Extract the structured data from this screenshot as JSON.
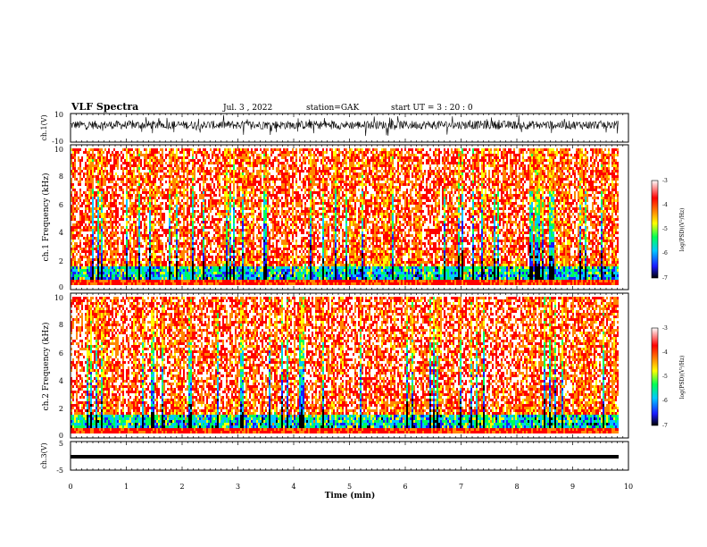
{
  "header": {
    "title": "VLF Spectra",
    "date": "Jul. 3 , 2022",
    "station": "station=GAK",
    "start": "start UT = 3 : 20 : 0"
  },
  "chart_data": [
    {
      "type": "line",
      "panel": "ch1-waveform",
      "ylabel": "ch.1(V)",
      "ylim": [
        -10,
        10
      ],
      "y_tick_labels": [
        "10",
        "-10"
      ],
      "xlim": [
        0,
        10
      ],
      "description": "noisy waveform centered near 2 V, roughly between -4 and 8 V"
    },
    {
      "type": "heatmap",
      "panel": "ch1-spectrogram",
      "ylabel": "ch.1 Frequency (kHz)",
      "ylim": [
        0,
        10
      ],
      "y_tick_labels": [
        "0",
        "2",
        "4",
        "6",
        "8",
        "10"
      ],
      "xlim": [
        0,
        9.85
      ],
      "colorbar": {
        "label": "log(PSD)(V²/Hz)",
        "range": [
          -7,
          -3
        ],
        "tick_labels": [
          "-3",
          "-4",
          "-5",
          "-6",
          "-7"
        ]
      }
    },
    {
      "type": "heatmap",
      "panel": "ch2-spectrogram",
      "ylabel": "ch.2 Frequency (kHz)",
      "ylim": [
        0,
        10
      ],
      "y_tick_labels": [
        "0",
        "2",
        "4",
        "6",
        "8",
        "10"
      ],
      "xlim": [
        0,
        9.85
      ],
      "colorbar": {
        "label": "log(PSD)(V²/Hz)",
        "range": [
          -7,
          -3
        ],
        "tick_labels": [
          "-3",
          "-4",
          "-5",
          "-6",
          "-7"
        ]
      }
    },
    {
      "type": "line",
      "panel": "ch3-waveform",
      "ylabel": "ch.3(V)",
      "ylim": [
        -5,
        5
      ],
      "y_tick_labels": [
        "5",
        "-5"
      ],
      "x": [
        0,
        9.85
      ],
      "y": [
        -1.5,
        -1.5
      ],
      "xlabel": "Time (min)",
      "xlim": [
        0,
        10
      ],
      "x_tick_labels": [
        "0",
        "1",
        "2",
        "3",
        "4",
        "5",
        "6",
        "7",
        "8",
        "9",
        "10"
      ]
    }
  ],
  "colors": {
    "colormap": [
      "#000000",
      "#1a1aff",
      "#00c8ff",
      "#00ff55",
      "#ffff00",
      "#ff8800",
      "#ff0000",
      "#ffffff"
    ]
  }
}
